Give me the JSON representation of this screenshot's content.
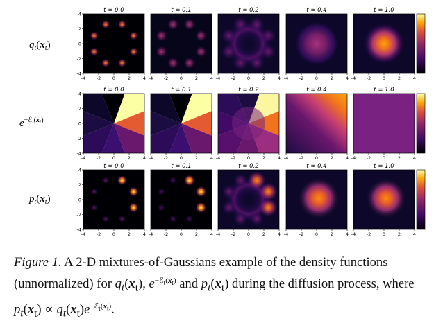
{
  "figure": {
    "times": [
      "t = 0.0",
      "t = 0.1",
      "t = 0.2",
      "t = 0.4",
      "t = 1.0"
    ],
    "row_labels": [
      "q_t(x_t)",
      "e^{-E_t(x_t)}",
      "p_t(x_t)"
    ],
    "xticks": [
      "-4",
      "-2",
      "0",
      "2",
      "4"
    ],
    "yticks": [
      "4",
      "2",
      "0",
      "-2",
      "-4"
    ],
    "colormap": "inferno",
    "colors": {
      "low": "#000004",
      "mid": "#b73779",
      "high": "#fcffa4"
    }
  },
  "caption": {
    "label": "Figure 1.",
    "text_1": "A 2-D mixtures-of-Gaussians example of the density functions (unnormalized) for",
    "text_2": "and",
    "text_3": "during the diffusion process, where"
  }
}
